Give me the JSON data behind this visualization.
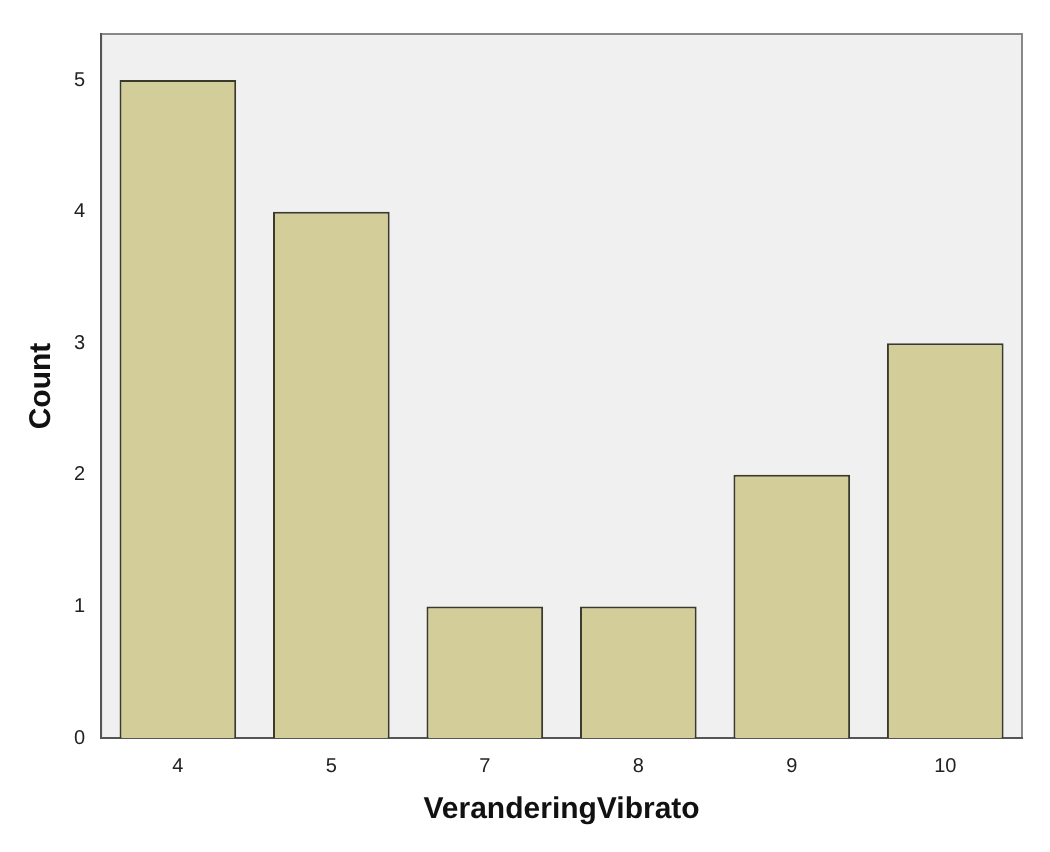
{
  "chart_data": {
    "type": "bar",
    "xlabel": "VeranderingVibrato",
    "ylabel": "Count",
    "categories": [
      "4",
      "5",
      "7",
      "8",
      "9",
      "10"
    ],
    "values": [
      5,
      4,
      1,
      1,
      2,
      3
    ],
    "color": "#d3ce99",
    "ylim": [
      0,
      5.35
    ],
    "yticks": [
      0,
      1,
      2,
      3,
      4,
      5
    ],
    "grid": false,
    "legend": false
  }
}
